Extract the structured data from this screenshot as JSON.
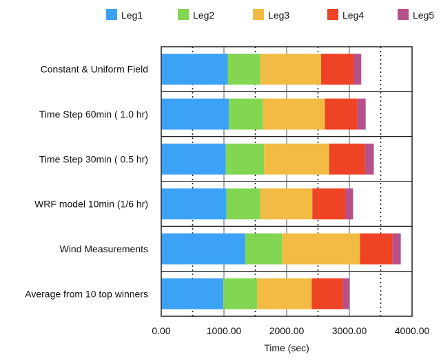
{
  "chart_data": {
    "type": "bar",
    "orientation": "horizontal",
    "stacked": true,
    "title": "",
    "xlabel": "Time (sec)",
    "ylabel": "",
    "xlim": [
      0,
      4000
    ],
    "x_ticks": [
      "0.00",
      "1000.00",
      "2000.00",
      "3000.00",
      "4000.00"
    ],
    "grid": "vertical dotted",
    "legend_position": "top",
    "categories": [
      "Constant & Uniform  Field",
      "Time Step 60min ( 1.0 hr)",
      "Time Step 30min ( 0.5 hr)",
      "WRF  model 10min (1/6 hr)",
      "Wind Measurements",
      "Average from 10 top winners"
    ],
    "series": [
      {
        "name": "Leg1",
        "color": "#3ca2f5",
        "values": [
          1060,
          1080,
          1030,
          1040,
          1340,
          990
        ]
      },
      {
        "name": "Leg2",
        "color": "#82d651",
        "values": [
          520,
          540,
          610,
          540,
          590,
          540
        ]
      },
      {
        "name": "Leg3",
        "color": "#f2bb43",
        "values": [
          970,
          990,
          1040,
          830,
          1240,
          870
        ]
      },
      {
        "name": "Leg4",
        "color": "#ee4325",
        "values": [
          520,
          520,
          570,
          530,
          520,
          500
        ]
      },
      {
        "name": "Leg5",
        "color": "#b6508b",
        "values": [
          120,
          130,
          140,
          120,
          130,
          100
        ]
      }
    ]
  }
}
